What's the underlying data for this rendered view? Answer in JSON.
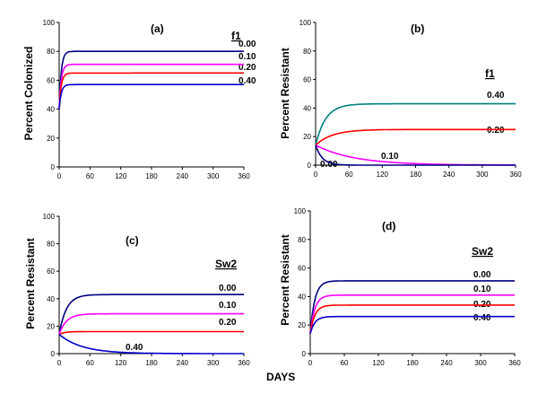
{
  "x_axis_label": "DAYS",
  "chart_data": [
    {
      "type": "line",
      "panel": "(a)",
      "ylabel": "Percent Colonized",
      "legend_title": "f1",
      "xlim": [
        0,
        360
      ],
      "ylim": [
        0,
        100
      ],
      "xticks": [
        0,
        60,
        120,
        180,
        240,
        300,
        360
      ],
      "yticks": [
        0,
        20,
        40,
        60,
        80,
        100
      ],
      "series": [
        {
          "name": "0.00",
          "color": "#000080",
          "start": 40,
          "end": 80,
          "tau": 4
        },
        {
          "name": "0.10",
          "color": "#ff00ff",
          "start": 40,
          "end": 71,
          "tau": 4
        },
        {
          "name": "0.20",
          "color": "#ff0000",
          "start": 40,
          "end": 65,
          "tau": 4
        },
        {
          "name": "0.40",
          "color": "#0000cc",
          "start": 40,
          "end": 57,
          "tau": 4
        }
      ]
    },
    {
      "type": "line",
      "panel": "(b)",
      "ylabel": "Percent Resistant",
      "legend_title": "f1",
      "xlim": [
        0,
        360
      ],
      "ylim": [
        0,
        100
      ],
      "xticks": [
        0,
        60,
        120,
        180,
        240,
        300,
        360
      ],
      "yticks": [
        0,
        20,
        40,
        60,
        80,
        100
      ],
      "series": [
        {
          "name": "0.40",
          "color": "#008080",
          "start": 14,
          "end": 43,
          "tau": 18
        },
        {
          "name": "0.20",
          "color": "#ff0000",
          "start": 14,
          "end": 25,
          "tau": 30
        },
        {
          "name": "0.10",
          "color": "#ff00ff",
          "start": 14,
          "end": 0,
          "tau": 70
        },
        {
          "name": "0.00",
          "color": "#000080",
          "start": 14,
          "end": 0,
          "tau": 12
        }
      ]
    },
    {
      "type": "line",
      "panel": "(c)",
      "ylabel": "Percent Resistant",
      "legend_title": "Sw2",
      "xlim": [
        0,
        360
      ],
      "ylim": [
        0,
        100
      ],
      "xticks": [
        0,
        60,
        120,
        180,
        240,
        300,
        360
      ],
      "yticks": [
        0,
        20,
        40,
        60,
        80,
        100
      ],
      "series": [
        {
          "name": "0.00",
          "color": "#000080",
          "start": 14,
          "end": 43,
          "tau": 14
        },
        {
          "name": "0.10",
          "color": "#ff00ff",
          "start": 14,
          "end": 29,
          "tau": 14
        },
        {
          "name": "0.20",
          "color": "#ff0000",
          "start": 14,
          "end": 16,
          "tau": 10
        },
        {
          "name": "0.40",
          "color": "#0000cc",
          "start": 14,
          "end": 0,
          "tau": 45
        }
      ]
    },
    {
      "type": "line",
      "panel": "(d)",
      "ylabel": "Percent Resistant",
      "legend_title": "Sw2",
      "xlim": [
        0,
        360
      ],
      "ylim": [
        0,
        100
      ],
      "xticks": [
        0,
        60,
        120,
        180,
        240,
        300,
        360
      ],
      "yticks": [
        0,
        20,
        40,
        60,
        80,
        100
      ],
      "series": [
        {
          "name": "0.00",
          "color": "#000080",
          "start": 14,
          "end": 51,
          "tau": 8
        },
        {
          "name": "0.10",
          "color": "#ff00ff",
          "start": 14,
          "end": 41,
          "tau": 8
        },
        {
          "name": "0.20",
          "color": "#ff0000",
          "start": 14,
          "end": 34,
          "tau": 8
        },
        {
          "name": "0.40",
          "color": "#0000cc",
          "start": 14,
          "end": 26,
          "tau": 8
        }
      ]
    }
  ]
}
